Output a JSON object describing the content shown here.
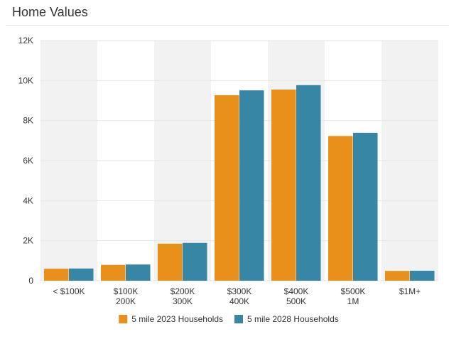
{
  "page": {
    "title": "Home Values"
  },
  "chart_data": {
    "type": "bar",
    "title": "Home Values",
    "categories": [
      [
        "< $100K"
      ],
      [
        "$100K",
        "200K"
      ],
      [
        "$200K",
        "300K"
      ],
      [
        "$300K",
        "400K"
      ],
      [
        "$400K",
        "500K"
      ],
      [
        "$500K",
        "1M"
      ],
      [
        "$1M+"
      ]
    ],
    "series": [
      {
        "name": "5 mile 2023 Households",
        "color": "#e8901a",
        "values": [
          600,
          790,
          1850,
          9270,
          9550,
          7230,
          490
        ]
      },
      {
        "name": "5 mile 2028 Households",
        "color": "#3786a6",
        "values": [
          610,
          810,
          1890,
          9510,
          9770,
          7390,
          500
        ]
      }
    ],
    "ylim": [
      0,
      12000
    ],
    "yticks": [
      {
        "value": 0,
        "label": "0"
      },
      {
        "value": 2000,
        "label": "2K"
      },
      {
        "value": 4000,
        "label": "4K"
      },
      {
        "value": 6000,
        "label": "6K"
      },
      {
        "value": 8000,
        "label": "8K"
      },
      {
        "value": 10000,
        "label": "10K"
      },
      {
        "value": 12000,
        "label": "12K"
      }
    ],
    "xlabel": "",
    "ylabel": "",
    "grid": true,
    "alternating_bands": true,
    "legend_position": "bottom-center"
  }
}
